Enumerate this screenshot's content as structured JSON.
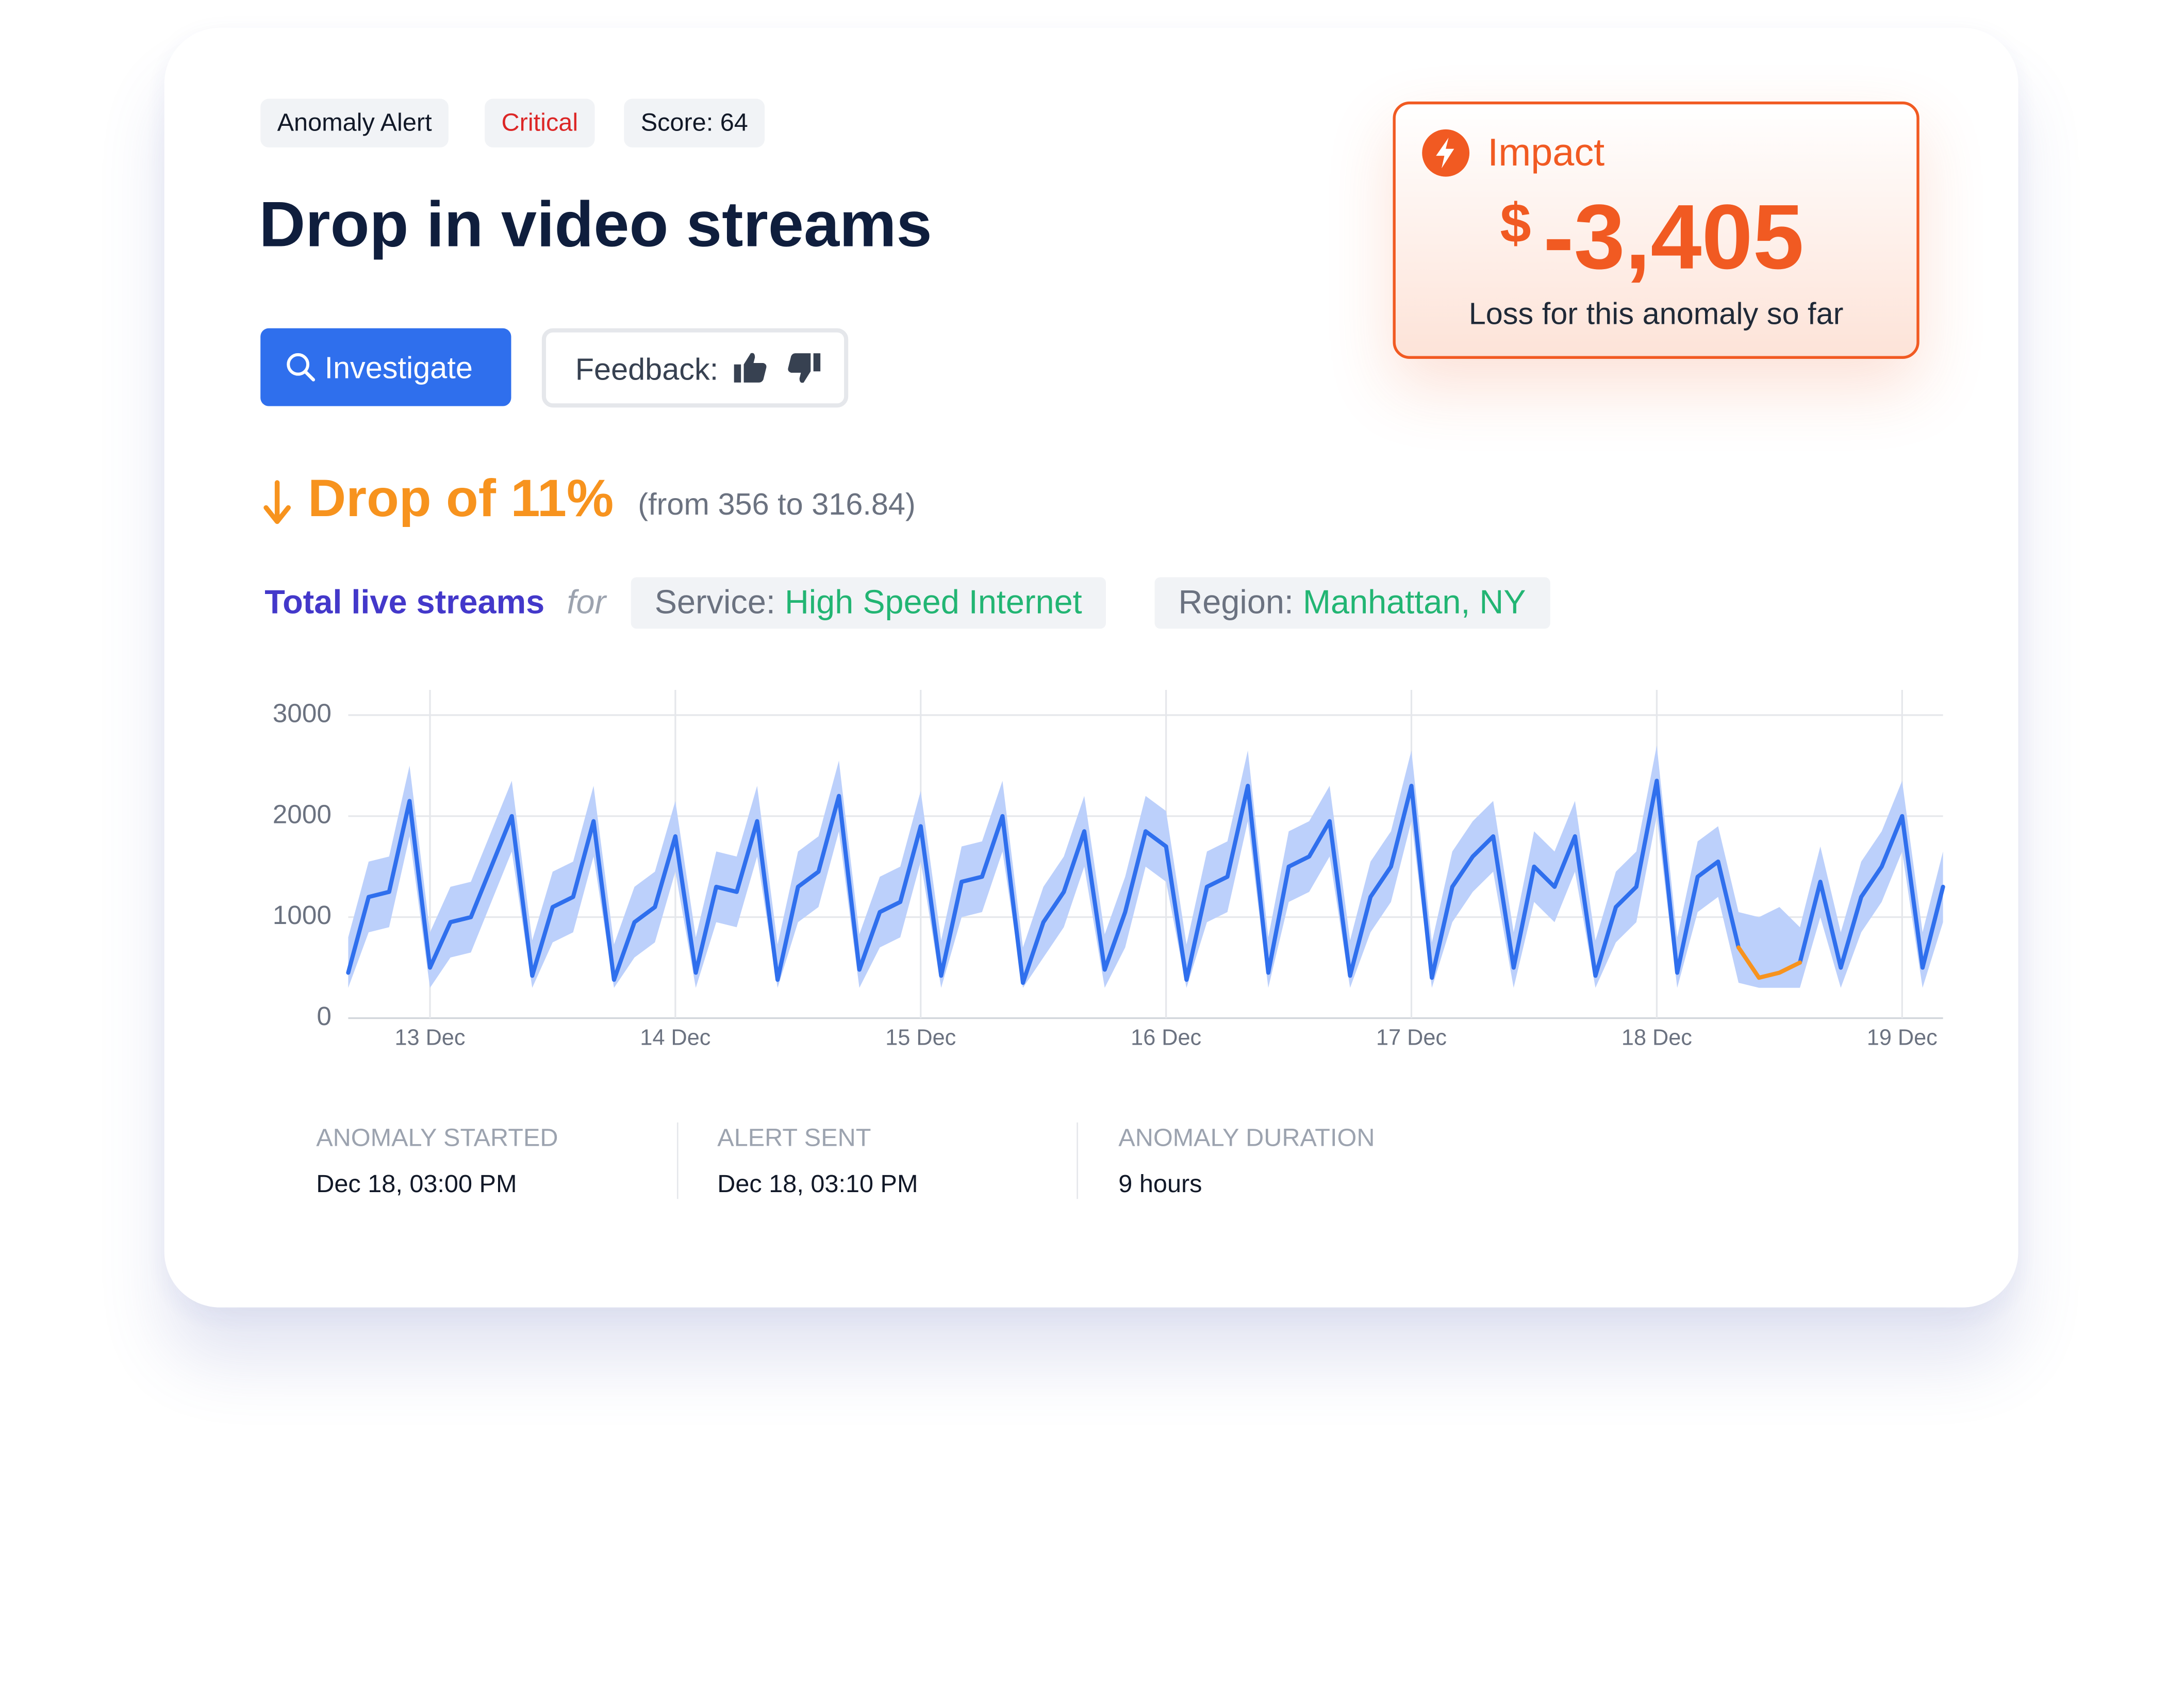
{
  "badges": [
    "Anomaly Alert",
    "Critical",
    "Score: 64"
  ],
  "title": "Drop in video streams",
  "buttons": {
    "investigate": "Investigate",
    "feedback": "Feedback:"
  },
  "impact": {
    "label": "Impact",
    "currency": "$",
    "value": "-3,405",
    "caption": "Loss for this anomaly so far"
  },
  "drop": {
    "text": "Drop of 11%",
    "detail": "(from 356 to 316.84)"
  },
  "metric": {
    "name": "Total live streams",
    "connector": "for",
    "filters": [
      {
        "key": "Service:",
        "value": "High Speed Internet"
      },
      {
        "key": "Region:",
        "value": "Manhattan, NY"
      }
    ]
  },
  "chart_data": {
    "type": "line",
    "x": [
      -8,
      -6,
      -4,
      -2,
      0,
      2,
      4,
      6,
      8,
      10,
      12,
      14,
      16,
      18,
      20,
      22,
      24,
      26,
      28,
      30,
      32,
      34,
      36,
      38,
      40,
      42,
      44,
      46,
      48,
      50,
      52,
      54,
      56,
      58,
      60,
      62,
      64,
      66,
      68,
      70,
      72,
      74,
      76,
      78,
      80,
      82,
      84,
      86,
      88,
      90,
      92,
      94,
      96,
      98,
      100,
      102,
      104,
      106,
      108,
      110,
      112,
      114,
      116,
      118,
      120,
      122,
      124,
      126,
      128,
      130,
      132,
      134,
      136,
      138,
      140,
      142,
      144,
      146,
      148
    ],
    "series": [
      {
        "color": "#2f6fed",
        "values": [
          450,
          1200,
          1250,
          2150,
          500,
          950,
          1000,
          1500,
          2000,
          420,
          1100,
          1200,
          1950,
          380,
          950,
          1100,
          1800,
          450,
          1300,
          1250,
          1950,
          380,
          1300,
          1450,
          2200,
          480,
          1050,
          1150,
          1900,
          420,
          1350,
          1400,
          2000,
          350,
          950,
          1250,
          1850,
          480,
          1050,
          1850,
          1700,
          380,
          1300,
          1400,
          2300,
          450,
          1500,
          1600,
          1950,
          420,
          1200,
          1500,
          2300,
          400,
          1300,
          1600,
          1800,
          500,
          1500,
          1300,
          1800,
          420,
          1100,
          1300,
          2350,
          450,
          1400,
          1550,
          700,
          null,
          null,
          550,
          1350,
          500,
          1200,
          1500,
          2000,
          500,
          1300
        ]
      },
      {
        "color": "#f7931e",
        "values": [
          null,
          null,
          null,
          null,
          null,
          null,
          null,
          null,
          null,
          null,
          null,
          null,
          null,
          null,
          null,
          null,
          null,
          null,
          null,
          null,
          null,
          null,
          null,
          null,
          null,
          null,
          null,
          null,
          null,
          null,
          null,
          null,
          null,
          null,
          null,
          null,
          null,
          null,
          null,
          null,
          null,
          null,
          null,
          null,
          null,
          null,
          null,
          null,
          null,
          null,
          null,
          null,
          null,
          null,
          null,
          null,
          null,
          null,
          null,
          null,
          null,
          null,
          null,
          null,
          null,
          null,
          null,
          null,
          700,
          400,
          450,
          550,
          null,
          null,
          null,
          null,
          null,
          null,
          null
        ]
      }
    ],
    "band": {
      "color": "#bcd0fb",
      "upper": [
        800,
        1550,
        1600,
        2500,
        850,
        1300,
        1350,
        1850,
        2350,
        770,
        1450,
        1550,
        2300,
        730,
        1300,
        1450,
        2150,
        800,
        1650,
        1600,
        2300,
        730,
        1650,
        1800,
        2550,
        830,
        1400,
        1500,
        2250,
        770,
        1700,
        1750,
        2350,
        700,
        1300,
        1600,
        2200,
        830,
        1400,
        2200,
        2050,
        730,
        1650,
        1750,
        2650,
        800,
        1850,
        1950,
        2300,
        770,
        1550,
        1850,
        2650,
        750,
        1650,
        1950,
        2150,
        850,
        1850,
        1650,
        2150,
        770,
        1450,
        1650,
        2700,
        800,
        1750,
        1900,
        1050,
        1000,
        1100,
        900,
        1700,
        850,
        1550,
        1850,
        2350,
        850,
        1650
      ],
      "lower": [
        300,
        850,
        900,
        1800,
        300,
        600,
        650,
        1150,
        1650,
        300,
        750,
        850,
        1600,
        300,
        600,
        750,
        1450,
        300,
        950,
        900,
        1600,
        300,
        950,
        1100,
        1850,
        300,
        700,
        800,
        1550,
        300,
        1000,
        1050,
        1650,
        300,
        600,
        900,
        1500,
        300,
        700,
        1500,
        1350,
        300,
        950,
        1050,
        1950,
        300,
        1150,
        1250,
        1600,
        300,
        850,
        1150,
        1950,
        300,
        950,
        1250,
        1450,
        300,
        1150,
        950,
        1450,
        300,
        750,
        950,
        2000,
        300,
        1050,
        1200,
        350,
        300,
        300,
        300,
        1000,
        300,
        850,
        1150,
        1650,
        300,
        950
      ]
    },
    "xlim": [
      -8,
      148
    ],
    "xticks": [
      {
        "value": 0,
        "label": "13 Dec"
      },
      {
        "value": 24,
        "label": "14 Dec"
      },
      {
        "value": 48,
        "label": "15 Dec"
      },
      {
        "value": 72,
        "label": "16 Dec"
      },
      {
        "value": 96,
        "label": "17 Dec"
      },
      {
        "value": 120,
        "label": "18 Dec"
      },
      {
        "value": 144,
        "label": "19 Dec"
      }
    ],
    "ylim": [
      0,
      3250
    ],
    "yticks": [
      0,
      1000,
      2000,
      3000
    ],
    "grid": true
  },
  "stats": [
    {
      "label": "ANOMALY STARTED",
      "value": "Dec 18, 03:00 PM"
    },
    {
      "label": "ALERT SENT",
      "value": "Dec 18, 03:10 PM"
    },
    {
      "label": "ANOMALY DURATION",
      "value": "9 hours"
    }
  ]
}
